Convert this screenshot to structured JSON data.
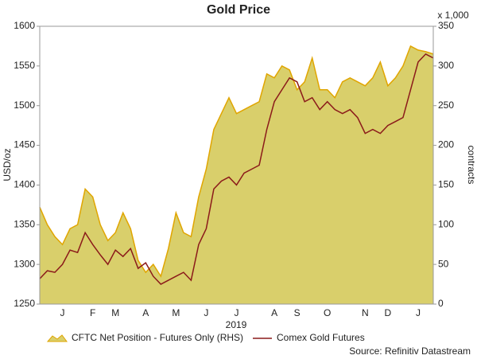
{
  "chart_data": {
    "type": "area-line",
    "title": "Gold Price",
    "ylabel": "USD/oz",
    "y2label": "contracts",
    "y2unit": "x 1,000",
    "xlabel": "2019",
    "source": "Source: Refinitiv Datastream",
    "categories": [
      null,
      null,
      null,
      "J",
      null,
      null,
      null,
      "F",
      null,
      null,
      "M",
      null,
      null,
      null,
      "A",
      null,
      null,
      null,
      "M",
      null,
      null,
      null,
      "J",
      null,
      null,
      null,
      "J",
      null,
      null,
      null,
      null,
      "A",
      null,
      null,
      "S",
      null,
      null,
      null,
      "O",
      null,
      null,
      null,
      null,
      "N",
      null,
      null,
      "D",
      null,
      null,
      null,
      "J",
      null,
      null
    ],
    "series": [
      {
        "name": "CFTC Net Position - Futures Only (RHS)",
        "type": "area",
        "axis": "y2",
        "color": "#d9cf6b",
        "edge": "#e0a500",
        "values": [
          122,
          100,
          85,
          75,
          95,
          100,
          145,
          135,
          100,
          80,
          90,
          115,
          95,
          55,
          40,
          50,
          35,
          70,
          115,
          90,
          85,
          135,
          170,
          220,
          240,
          260,
          240,
          245,
          250,
          255,
          290,
          285,
          300,
          295,
          270,
          280,
          310,
          270,
          270,
          260,
          280,
          285,
          280,
          275,
          285,
          305,
          275,
          285,
          300,
          325,
          320,
          318,
          315
        ]
      },
      {
        "name": "Comex Gold Futures",
        "type": "line",
        "axis": "y",
        "color": "#8b1a1a",
        "values": [
          1282,
          1292,
          1290,
          1300,
          1318,
          1315,
          1340,
          1325,
          1312,
          1300,
          1318,
          1310,
          1320,
          1295,
          1302,
          1285,
          1275,
          1280,
          1285,
          1290,
          1280,
          1325,
          1345,
          1395,
          1405,
          1410,
          1400,
          1415,
          1420,
          1425,
          1470,
          1505,
          1520,
          1535,
          1530,
          1505,
          1510,
          1495,
          1505,
          1495,
          1490,
          1495,
          1485,
          1465,
          1470,
          1465,
          1475,
          1480,
          1485,
          1520,
          1555,
          1565,
          1560
        ]
      }
    ],
    "ylim": [
      1250,
      1600
    ],
    "yticks": [
      1250,
      1300,
      1350,
      1400,
      1450,
      1500,
      1550,
      1600
    ],
    "y2lim": [
      0,
      350
    ],
    "y2ticks": [
      0,
      50,
      100,
      150,
      200,
      250,
      300,
      350
    ]
  }
}
